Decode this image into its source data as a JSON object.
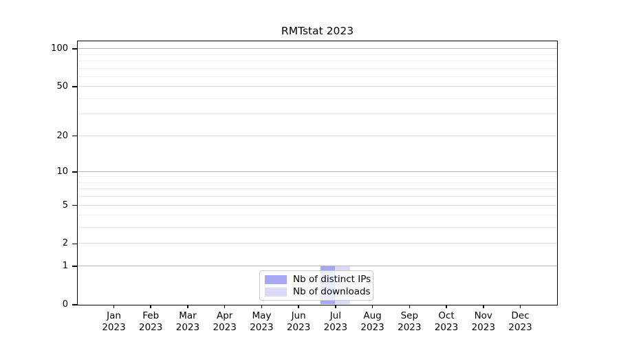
{
  "chart_data": {
    "type": "bar",
    "title": "RMTstat 2023",
    "year": "2023",
    "categories": [
      "Jan",
      "Feb",
      "Mar",
      "Apr",
      "May",
      "Jun",
      "Jul",
      "Aug",
      "Sep",
      "Oct",
      "Nov",
      "Dec"
    ],
    "series": [
      {
        "name": "Nb of distinct IPs",
        "color": "#a7a8f3",
        "values": [
          0,
          0,
          0,
          0,
          0,
          0,
          1,
          0,
          0,
          0,
          0,
          0
        ]
      },
      {
        "name": "Nb of downloads",
        "color": "#dadbf9",
        "values": [
          0,
          0,
          0,
          0,
          0,
          0,
          1,
          0,
          0,
          0,
          0,
          0
        ]
      }
    ],
    "yscale": "log(1+y)",
    "ylim": [
      0,
      115
    ],
    "y_major_ticks": [
      0,
      1,
      2,
      5,
      10,
      20,
      50,
      100
    ],
    "y_decade_gridlines": [
      1,
      10,
      100
    ],
    "y_mid_gridlines": [
      2,
      5,
      20,
      50
    ],
    "y_minor_gridlines": [
      3,
      4,
      6,
      7,
      8,
      9,
      30,
      40,
      60,
      70,
      80,
      90
    ],
    "grid": "horizontal",
    "legend_position": "lower center",
    "xlabel": "",
    "ylabel": ""
  }
}
